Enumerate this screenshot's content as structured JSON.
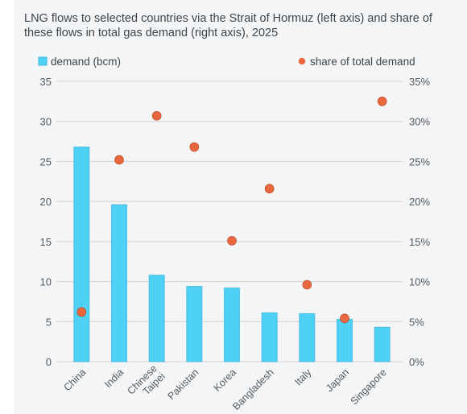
{
  "title": "LNG flows to selected countries via the Strait of Hormuz (left axis) and share of these flows in total gas demand (right axis), 2025",
  "colors": {
    "bar": "#4fd0f5",
    "bar_stroke": "#3bb7de",
    "dot": "#e8673f",
    "dot_stroke": "#b8461f",
    "grid": "#cfd3d6",
    "background": "#f4f5f6"
  },
  "chart_data": {
    "type": "bar",
    "categories": [
      "China",
      "India",
      "Chinese Taipei",
      "Pakistan",
      "Korea",
      "Bangladesh",
      "Italy",
      "Japan",
      "Singapore"
    ],
    "series": [
      {
        "name": "demand (bcm)",
        "kind": "bar",
        "axis": "left",
        "values": [
          26.8,
          19.6,
          10.8,
          9.4,
          9.2,
          6.1,
          6.0,
          5.3,
          4.3
        ]
      },
      {
        "name": "share of total demand",
        "kind": "scatter",
        "axis": "right",
        "values": [
          6.2,
          25.2,
          30.7,
          26.8,
          15.1,
          21.6,
          9.6,
          5.4,
          32.5
        ]
      }
    ],
    "ylim_left": [
      0,
      35
    ],
    "ylim_right": [
      0,
      35
    ],
    "yticks_left": [
      "0",
      "5",
      "10",
      "15",
      "20",
      "25",
      "30",
      "35"
    ],
    "yticks_right": [
      "0%",
      "5%",
      "10%",
      "15%",
      "20%",
      "25%",
      "30%",
      "35%"
    ],
    "legend_placement": "top",
    "grid": true
  }
}
